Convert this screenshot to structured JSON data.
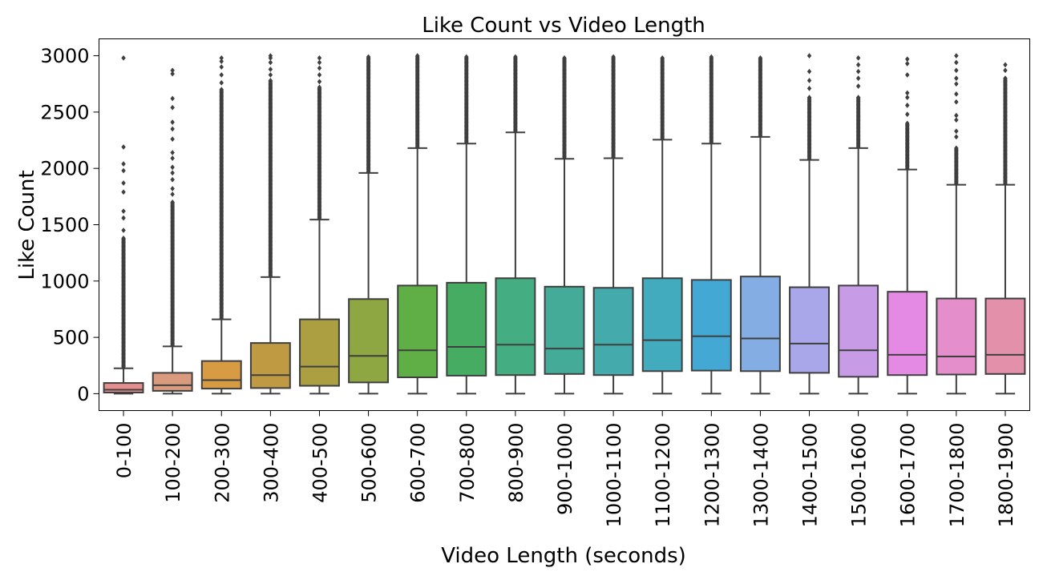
{
  "chart_data": {
    "type": "box",
    "title": "Like Count vs Video Length",
    "xlabel": "Video Length (seconds)",
    "ylabel": "Like Count",
    "ylim": [
      -150,
      3150
    ],
    "yticks": [
      0,
      500,
      1000,
      1500,
      2000,
      2500,
      3000
    ],
    "grid": false,
    "categories": [
      "0-100",
      "100-200",
      "200-300",
      "300-400",
      "400-500",
      "500-600",
      "600-700",
      "700-800",
      "800-900",
      "900-1000",
      "1000-1100",
      "1100-1200",
      "1200-1300",
      "1300-1400",
      "1400-1500",
      "1500-1600",
      "1600-1700",
      "1700-1800",
      "1800-1900"
    ],
    "colors": [
      "#e48f8e",
      "#d99a7e",
      "#d69b43",
      "#bf9a43",
      "#ab9f41",
      "#8fa742",
      "#5fae46",
      "#46ac62",
      "#45ad82",
      "#44ab98",
      "#44aaab",
      "#42acbe",
      "#44a8d5",
      "#84ade4",
      "#a9a7ea",
      "#c79be6",
      "#e48ae5",
      "#e48fcb",
      "#e390ab"
    ],
    "boxes": [
      {
        "whisker_low": 0,
        "q1": 10,
        "median": 35,
        "q3": 95,
        "whisker_high": 225,
        "outlier_min": 230,
        "outlier_max": 1380,
        "extra_outliers": [
          1450,
          1560,
          1620,
          1790,
          1870,
          1980,
          2040,
          2190,
          2980
        ]
      },
      {
        "whisker_low": 0,
        "q1": 25,
        "median": 75,
        "q3": 185,
        "whisker_high": 420,
        "outlier_min": 430,
        "outlier_max": 1700,
        "extra_outliers": [
          1770,
          1820,
          1900,
          1960,
          2010,
          2090,
          2140,
          2260,
          2350,
          2410,
          2540,
          2620,
          2840,
          2870
        ]
      },
      {
        "whisker_low": 0,
        "q1": 45,
        "median": 120,
        "q3": 290,
        "whisker_high": 660,
        "outlier_min": 670,
        "outlier_max": 2700,
        "extra_outliers": [
          2760,
          2830,
          2900,
          2950,
          2980
        ]
      },
      {
        "whisker_low": 0,
        "q1": 50,
        "median": 165,
        "q3": 450,
        "whisker_high": 1035,
        "outlier_min": 1045,
        "outlier_max": 2780,
        "extra_outliers": [
          2830,
          2880,
          2940,
          2980,
          3000
        ]
      },
      {
        "whisker_low": 0,
        "q1": 70,
        "median": 240,
        "q3": 660,
        "whisker_high": 1545,
        "outlier_min": 1555,
        "outlier_max": 2720,
        "extra_outliers": [
          2770,
          2830,
          2890,
          2940,
          2980
        ]
      },
      {
        "whisker_low": 0,
        "q1": 100,
        "median": 335,
        "q3": 840,
        "whisker_high": 1960,
        "outlier_min": 1970,
        "outlier_max": 2990,
        "extra_outliers": []
      },
      {
        "whisker_low": 0,
        "q1": 145,
        "median": 385,
        "q3": 960,
        "whisker_high": 2180,
        "outlier_min": 2190,
        "outlier_max": 3000,
        "extra_outliers": []
      },
      {
        "whisker_low": 0,
        "q1": 160,
        "median": 415,
        "q3": 985,
        "whisker_high": 2220,
        "outlier_min": 2230,
        "outlier_max": 2990,
        "extra_outliers": []
      },
      {
        "whisker_low": 0,
        "q1": 165,
        "median": 435,
        "q3": 1025,
        "whisker_high": 2320,
        "outlier_min": 2330,
        "outlier_max": 2990,
        "extra_outliers": []
      },
      {
        "whisker_low": 0,
        "q1": 175,
        "median": 400,
        "q3": 950,
        "whisker_high": 2085,
        "outlier_min": 2095,
        "outlier_max": 2980,
        "extra_outliers": []
      },
      {
        "whisker_low": 0,
        "q1": 165,
        "median": 435,
        "q3": 940,
        "whisker_high": 2090,
        "outlier_min": 2100,
        "outlier_max": 2990,
        "extra_outliers": []
      },
      {
        "whisker_low": 0,
        "q1": 200,
        "median": 475,
        "q3": 1025,
        "whisker_high": 2255,
        "outlier_min": 2265,
        "outlier_max": 2980,
        "extra_outliers": []
      },
      {
        "whisker_low": 0,
        "q1": 205,
        "median": 510,
        "q3": 1010,
        "whisker_high": 2220,
        "outlier_min": 2230,
        "outlier_max": 2990,
        "extra_outliers": []
      },
      {
        "whisker_low": 0,
        "q1": 200,
        "median": 490,
        "q3": 1040,
        "whisker_high": 2280,
        "outlier_min": 2290,
        "outlier_max": 2980,
        "extra_outliers": []
      },
      {
        "whisker_low": 0,
        "q1": 185,
        "median": 445,
        "q3": 945,
        "whisker_high": 2075,
        "outlier_min": 2085,
        "outlier_max": 2630,
        "extra_outliers": [
          2710,
          2780,
          2860,
          3000
        ]
      },
      {
        "whisker_low": 0,
        "q1": 150,
        "median": 385,
        "q3": 960,
        "whisker_high": 2180,
        "outlier_min": 2190,
        "outlier_max": 2630,
        "extra_outliers": [
          2730,
          2800,
          2860,
          2920,
          2980
        ]
      },
      {
        "whisker_low": 0,
        "q1": 165,
        "median": 345,
        "q3": 905,
        "whisker_high": 1990,
        "outlier_min": 2000,
        "outlier_max": 2400,
        "extra_outliers": [
          2480,
          2560,
          2630,
          2670,
          2830,
          2930,
          2970
        ]
      },
      {
        "whisker_low": 0,
        "q1": 170,
        "median": 330,
        "q3": 845,
        "whisker_high": 1855,
        "outlier_min": 1865,
        "outlier_max": 2180,
        "extra_outliers": [
          2280,
          2330,
          2430,
          2470,
          2590,
          2660,
          2750,
          2800,
          2870,
          2940,
          3000
        ]
      },
      {
        "whisker_low": 0,
        "q1": 175,
        "median": 345,
        "q3": 845,
        "whisker_high": 1855,
        "outlier_min": 1865,
        "outlier_max": 2800,
        "extra_outliers": [
          2870,
          2920
        ]
      }
    ]
  }
}
